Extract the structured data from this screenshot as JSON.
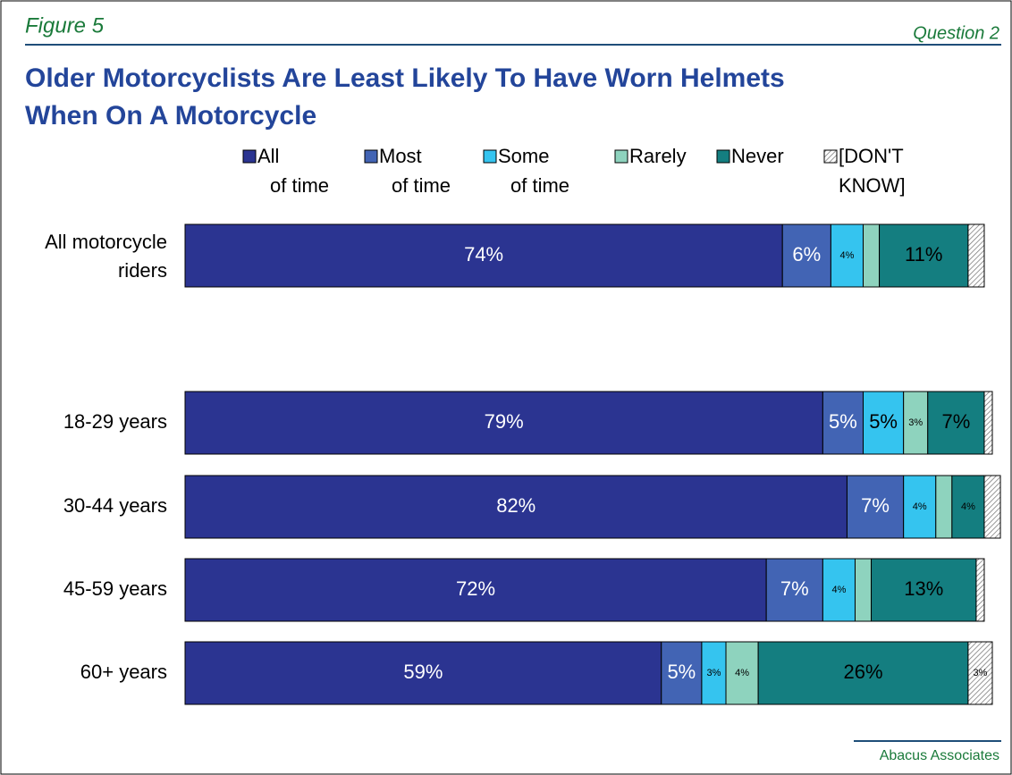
{
  "figure_label": "Figure 5",
  "question_label": "Question 2",
  "footer": "Abacus Associates",
  "chart_data": {
    "type": "stacked_bar_horizontal",
    "title": "Older Motorcyclists Are Least Likely To Have Worn Helmets When On A Motorcycle",
    "categories": [
      "All motorcycle riders",
      "18-29 years",
      "30-44 years",
      "45-59 years",
      "60+ years"
    ],
    "series": [
      {
        "name": "All of time",
        "color": "#2b3491",
        "label_color": "#ffffff",
        "values": [
          74,
          79,
          82,
          72,
          59
        ],
        "value_labels": [
          "74%",
          "79%",
          "82%",
          "72%",
          "59%"
        ]
      },
      {
        "name": "Most of time",
        "color": "#4264b4",
        "label_color": "#ffffff",
        "values": [
          6,
          5,
          7,
          7,
          5
        ],
        "value_labels": [
          "6%",
          "5%",
          "7%",
          "7%",
          "5%"
        ]
      },
      {
        "name": "Some of time",
        "color": "#35c4ef",
        "label_color": "#000000",
        "values": [
          4,
          5,
          4,
          4,
          3
        ],
        "value_labels": [
          "4%",
          "5%",
          "4%",
          "4%",
          "3%"
        ]
      },
      {
        "name": "Rarely",
        "color": "#8ed3be",
        "label_color": "#000000",
        "values": [
          2,
          3,
          2,
          2,
          4
        ],
        "value_labels": [
          null,
          "3%",
          null,
          null,
          "4%"
        ]
      },
      {
        "name": "Never",
        "color": "#147e80",
        "label_color": "#000000",
        "values": [
          11,
          7,
          4,
          13,
          26
        ],
        "value_labels": [
          "11%",
          "7%",
          "4%",
          "13%",
          "26%"
        ]
      },
      {
        "name": "[DON'T KNOW]",
        "color": "#9a9a9a",
        "pattern": "hatch",
        "label_color": "#000000",
        "values": [
          2,
          1,
          2,
          1,
          3
        ],
        "value_labels": [
          null,
          null,
          null,
          null,
          "3%"
        ]
      }
    ]
  }
}
